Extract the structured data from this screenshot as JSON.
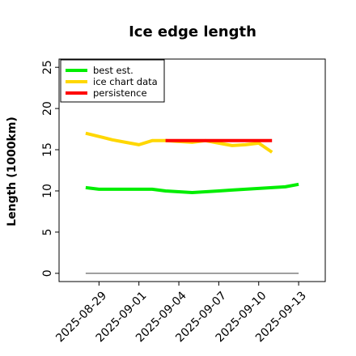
{
  "chart_data": {
    "type": "line",
    "title": "Ice edge length",
    "xlabel": "",
    "ylabel": "Length (1000km)",
    "ylim": [
      -1,
      26
    ],
    "xlim": [
      "2025-08-26",
      "2025-09-15"
    ],
    "yticks": [
      0,
      5,
      10,
      15,
      20,
      25
    ],
    "xticks": [
      "2025-08-29",
      "2025-09-01",
      "2025-09-04",
      "2025-09-07",
      "2025-09-10",
      "2025-09-13"
    ],
    "grid": false,
    "legend": {
      "position": "top-left"
    },
    "series": [
      {
        "name": "best est.",
        "color": "#00ee00",
        "x": [
          "2025-08-28",
          "2025-08-29",
          "2025-08-30",
          "2025-08-31",
          "2025-09-01",
          "2025-09-02",
          "2025-09-03",
          "2025-09-04",
          "2025-09-05",
          "2025-09-06",
          "2025-09-07",
          "2025-09-08",
          "2025-09-09",
          "2025-09-10",
          "2025-09-11",
          "2025-09-12",
          "2025-09-13"
        ],
        "y": [
          10.4,
          10.2,
          10.2,
          10.2,
          10.2,
          10.2,
          10.0,
          9.9,
          9.8,
          9.9,
          10.0,
          10.1,
          10.2,
          10.3,
          10.4,
          10.5,
          10.8
        ]
      },
      {
        "name": "ice chart data",
        "color": "#ffd700",
        "x": [
          "2025-08-28",
          "2025-08-29",
          "2025-08-30",
          "2025-08-31",
          "2025-09-01",
          "2025-09-02",
          "2025-09-03",
          "2025-09-04",
          "2025-09-05",
          "2025-09-06",
          "2025-09-07",
          "2025-09-08",
          "2025-09-09",
          "2025-09-10",
          "2025-09-11"
        ],
        "y": [
          17.0,
          16.6,
          16.2,
          15.9,
          15.6,
          16.1,
          16.1,
          16.0,
          15.9,
          16.1,
          15.8,
          15.5,
          15.6,
          15.8,
          14.7
        ]
      },
      {
        "name": "persistence",
        "color": "#ff0000",
        "x": [
          "2025-09-03",
          "2025-09-11"
        ],
        "y": [
          16.1,
          16.1
        ]
      },
      {
        "name": "",
        "color": "#808080",
        "x": [
          "2025-08-28",
          "2025-09-13"
        ],
        "y": [
          0,
          0
        ]
      }
    ]
  }
}
